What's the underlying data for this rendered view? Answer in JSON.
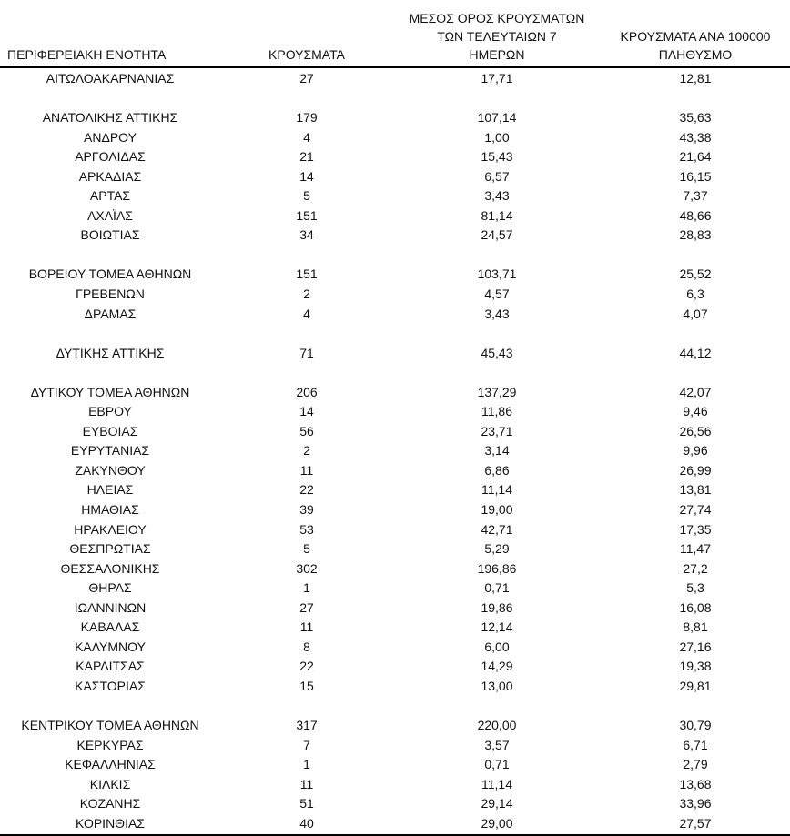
{
  "table": {
    "headers": {
      "region": "ΠΕΡΙΦΕΡΕΙΑΚΗ ΕΝΟΤΗΤΑ",
      "cases": "ΚΡΟΥΣΜΑΤΑ",
      "avg7": "ΜΕΣΟΣ ΟΡΟΣ ΚΡΟΥΣΜΑΤΩΝ\nΤΩΝ ΤΕΛΕΥΤΑΙΩΝ 7\nΗΜΕΡΩΝ",
      "per100k": "ΚΡΟΥΣΜΑΤΑ ΑΝΑ 100000\nΠΛΗΘΥΣΜΟ"
    },
    "rows": [
      {
        "region": "ΑΙΤΩΛΟΑΚΑΡΝΑΝΙΑΣ",
        "cases": "27",
        "avg7": "17,71",
        "per100k": "12,81",
        "gap_after": true
      },
      {
        "region": "ΑΝΑΤΟΛΙΚΗΣ ΑΤΤΙΚΗΣ",
        "cases": "179",
        "avg7": "107,14",
        "per100k": "35,63",
        "gap_after": false
      },
      {
        "region": "ΑΝΔΡΟΥ",
        "cases": "4",
        "avg7": "1,00",
        "per100k": "43,38",
        "gap_after": false
      },
      {
        "region": "ΑΡΓΟΛΙΔΑΣ",
        "cases": "21",
        "avg7": "15,43",
        "per100k": "21,64",
        "gap_after": false
      },
      {
        "region": "ΑΡΚΑΔΙΑΣ",
        "cases": "14",
        "avg7": "6,57",
        "per100k": "16,15",
        "gap_after": false
      },
      {
        "region": "ΑΡΤΑΣ",
        "cases": "5",
        "avg7": "3,43",
        "per100k": "7,37",
        "gap_after": false
      },
      {
        "region": "ΑΧΑΪΑΣ",
        "cases": "151",
        "avg7": "81,14",
        "per100k": "48,66",
        "gap_after": false
      },
      {
        "region": "ΒΟΙΩΤΙΑΣ",
        "cases": "34",
        "avg7": "24,57",
        "per100k": "28,83",
        "gap_after": true
      },
      {
        "region": "ΒΟΡΕΙΟΥ ΤΟΜΕΑ ΑΘΗΝΩΝ",
        "cases": "151",
        "avg7": "103,71",
        "per100k": "25,52",
        "gap_after": false
      },
      {
        "region": "ΓΡΕΒΕΝΩΝ",
        "cases": "2",
        "avg7": "4,57",
        "per100k": "6,3",
        "gap_after": false
      },
      {
        "region": "ΔΡΑΜΑΣ",
        "cases": "4",
        "avg7": "3,43",
        "per100k": "4,07",
        "gap_after": true
      },
      {
        "region": "ΔΥΤΙΚΗΣ ΑΤΤΙΚΗΣ",
        "cases": "71",
        "avg7": "45,43",
        "per100k": "44,12",
        "gap_after": true
      },
      {
        "region": "ΔΥΤΙΚΟΥ ΤΟΜΕΑ ΑΘΗΝΩΝ",
        "cases": "206",
        "avg7": "137,29",
        "per100k": "42,07",
        "gap_after": false
      },
      {
        "region": "ΕΒΡΟΥ",
        "cases": "14",
        "avg7": "11,86",
        "per100k": "9,46",
        "gap_after": false
      },
      {
        "region": "ΕΥΒΟΙΑΣ",
        "cases": "56",
        "avg7": "23,71",
        "per100k": "26,56",
        "gap_after": false
      },
      {
        "region": "ΕΥΡΥΤΑΝΙΑΣ",
        "cases": "2",
        "avg7": "3,14",
        "per100k": "9,96",
        "gap_after": false
      },
      {
        "region": "ΖΑΚΥΝΘΟΥ",
        "cases": "11",
        "avg7": "6,86",
        "per100k": "26,99",
        "gap_after": false
      },
      {
        "region": "ΗΛΕΙΑΣ",
        "cases": "22",
        "avg7": "11,14",
        "per100k": "13,81",
        "gap_after": false
      },
      {
        "region": "ΗΜΑΘΙΑΣ",
        "cases": "39",
        "avg7": "19,00",
        "per100k": "27,74",
        "gap_after": false
      },
      {
        "region": "ΗΡΑΚΛΕΙΟΥ",
        "cases": "53",
        "avg7": "42,71",
        "per100k": "17,35",
        "gap_after": false
      },
      {
        "region": "ΘΕΣΠΡΩΤΙΑΣ",
        "cases": "5",
        "avg7": "5,29",
        "per100k": "11,47",
        "gap_after": false
      },
      {
        "region": "ΘΕΣΣΑΛΟΝΙΚΗΣ",
        "cases": "302",
        "avg7": "196,86",
        "per100k": "27,2",
        "gap_after": false
      },
      {
        "region": "ΘΗΡΑΣ",
        "cases": "1",
        "avg7": "0,71",
        "per100k": "5,3",
        "gap_after": false
      },
      {
        "region": "ΙΩΑΝΝΙΝΩΝ",
        "cases": "27",
        "avg7": "19,86",
        "per100k": "16,08",
        "gap_after": false
      },
      {
        "region": "ΚΑΒΑΛΑΣ",
        "cases": "11",
        "avg7": "12,14",
        "per100k": "8,81",
        "gap_after": false
      },
      {
        "region": "ΚΑΛΥΜΝΟΥ",
        "cases": "8",
        "avg7": "6,00",
        "per100k": "27,16",
        "gap_after": false
      },
      {
        "region": "ΚΑΡΔΙΤΣΑΣ",
        "cases": "22",
        "avg7": "14,29",
        "per100k": "19,38",
        "gap_after": false
      },
      {
        "region": "ΚΑΣΤΟΡΙΑΣ",
        "cases": "15",
        "avg7": "13,00",
        "per100k": "29,81",
        "gap_after": true
      },
      {
        "region": "ΚΕΝΤΡΙΚΟΥ ΤΟΜΕΑ ΑΘΗΝΩΝ",
        "cases": "317",
        "avg7": "220,00",
        "per100k": "30,79",
        "gap_after": false
      },
      {
        "region": "ΚΕΡΚΥΡΑΣ",
        "cases": "7",
        "avg7": "3,57",
        "per100k": "6,71",
        "gap_after": false
      },
      {
        "region": "ΚΕΦΑΛΛΗΝΙΑΣ",
        "cases": "1",
        "avg7": "0,71",
        "per100k": "2,79",
        "gap_after": false
      },
      {
        "region": "ΚΙΛΚΙΣ",
        "cases": "11",
        "avg7": "11,14",
        "per100k": "13,68",
        "gap_after": false
      },
      {
        "region": "ΚΟΖΑΝΗΣ",
        "cases": "51",
        "avg7": "29,14",
        "per100k": "33,96",
        "gap_after": false
      },
      {
        "region": "ΚΟΡΙΝΘΙΑΣ",
        "cases": "40",
        "avg7": "29,00",
        "per100k": "27,57",
        "gap_after": false
      }
    ]
  },
  "colors": {
    "text": "#111111",
    "rule": "#000000",
    "background": "#ffffff"
  }
}
